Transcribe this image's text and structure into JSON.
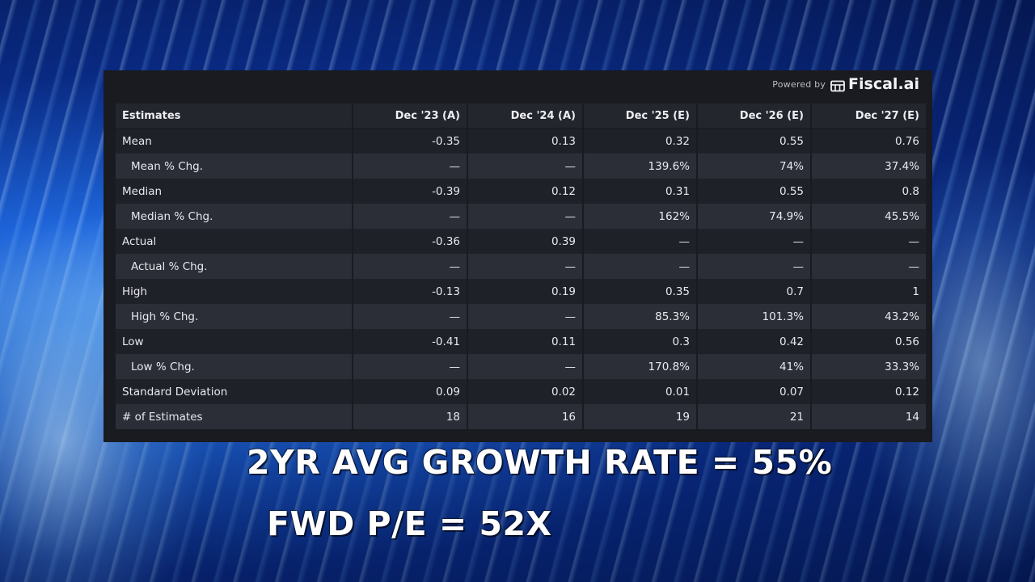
{
  "branding": {
    "powered_by": "Powered by",
    "brand_name": "Fiscal.ai",
    "logo_icon": "fiscal-logo-icon"
  },
  "table": {
    "columns": [
      "Estimates",
      "Dec '23 (A)",
      "Dec '24 (A)",
      "Dec '25 (E)",
      "Dec '26 (E)",
      "Dec '27 (E)"
    ],
    "rows": [
      {
        "label": "Mean",
        "values": [
          "-0.35",
          "0.13",
          "0.32",
          "0.55",
          "0.76"
        ]
      },
      {
        "label": "Mean % Chg.",
        "values": [
          "—",
          "—",
          "139.6%",
          "74%",
          "37.4%"
        ]
      },
      {
        "label": "Median",
        "values": [
          "-0.39",
          "0.12",
          "0.31",
          "0.55",
          "0.8"
        ]
      },
      {
        "label": "Median % Chg.",
        "values": [
          "—",
          "—",
          "162%",
          "74.9%",
          "45.5%"
        ]
      },
      {
        "label": "Actual",
        "values": [
          "-0.36",
          "0.39",
          "—",
          "—",
          "—"
        ]
      },
      {
        "label": "Actual % Chg.",
        "values": [
          "—",
          "—",
          "—",
          "—",
          "—"
        ]
      },
      {
        "label": "High",
        "values": [
          "-0.13",
          "0.19",
          "0.35",
          "0.7",
          "1"
        ]
      },
      {
        "label": "High % Chg.",
        "values": [
          "—",
          "—",
          "85.3%",
          "101.3%",
          "43.2%"
        ]
      },
      {
        "label": "Low",
        "values": [
          "-0.41",
          "0.11",
          "0.3",
          "0.42",
          "0.56"
        ]
      },
      {
        "label": "Low % Chg.",
        "values": [
          "—",
          "—",
          "170.8%",
          "41%",
          "33.3%"
        ]
      },
      {
        "label": "Standard Deviation",
        "values": [
          "0.09",
          "0.02",
          "0.01",
          "0.07",
          "0.12"
        ]
      },
      {
        "label": "# of Estimates",
        "values": [
          "18",
          "16",
          "19",
          "21",
          "14"
        ]
      }
    ]
  },
  "captions": {
    "growth": "2YR AVG GROWTH RATE = 55%",
    "pe": "FWD P/E =  52X"
  },
  "colors": {
    "panel_bg": "#191b21",
    "header_bg": "#24262e",
    "row_dark": "#1f2128",
    "row_light": "#2b2e37",
    "text": "#e7e9ee",
    "caption": "#ffffff",
    "background_blue": "#0a2d8c"
  }
}
